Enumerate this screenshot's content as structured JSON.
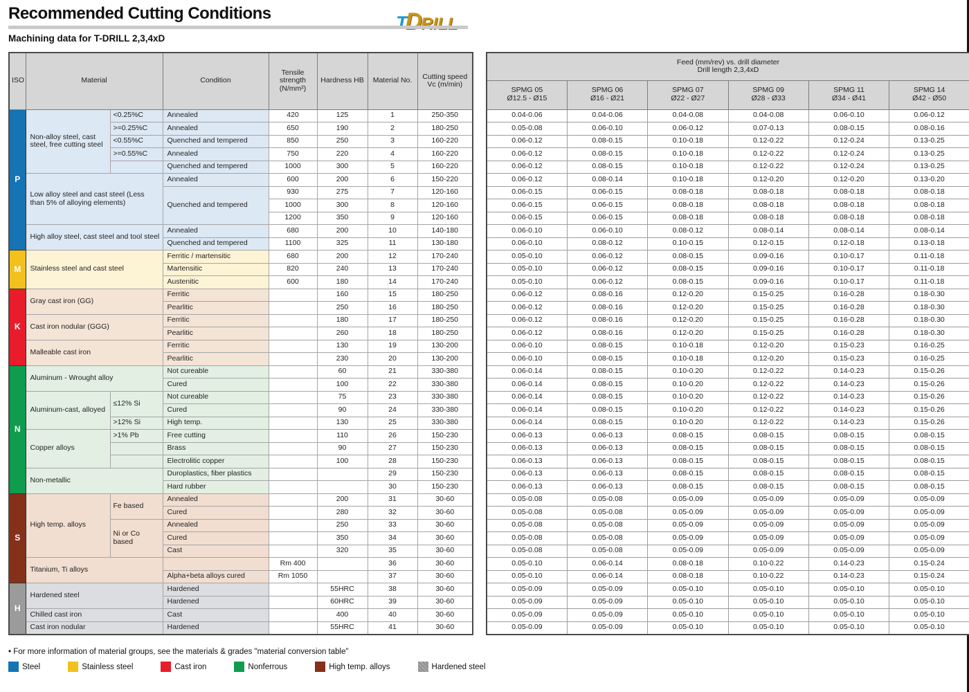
{
  "page": {
    "title": "Recommended Cutting Conditions",
    "subtitle": "Machining data for T-DRILL 2,3,4xD",
    "logo": {
      "t": "T",
      "d": "D",
      "rill": "RILL"
    },
    "footnote": "• For more information of material groups, see the materials & grades \"material conversion table\"",
    "legend": [
      {
        "label": "Steel",
        "color": "#1673b4",
        "hatch": false
      },
      {
        "label": "Stainless steel",
        "color": "#f2c11e",
        "hatch": false
      },
      {
        "label": "Cast iron",
        "color": "#e81c2b",
        "hatch": false
      },
      {
        "label": "Nonferrous",
        "color": "#0f9c4e",
        "hatch": false
      },
      {
        "label": "High temp. alloys",
        "color": "#84301b",
        "hatch": false
      },
      {
        "label": "Hardened steel",
        "color": "#9b9b9b",
        "hatch": true
      }
    ]
  },
  "left_table": {
    "headers": {
      "iso": "ISO",
      "material": "Material",
      "condition": "Condition",
      "tensile": "Tensile strength (N/mm²)",
      "hardness": "Hardness HB",
      "material_no": "Material No.",
      "cutting_speed": "Cutting speed Vc (m/min)"
    },
    "iso_groups": [
      {
        "letter": "P",
        "span": 11,
        "color": "#1673b4",
        "bg": "#dce8f4",
        "fg": "#ffffff",
        "hatch": false
      },
      {
        "letter": "M",
        "span": 3,
        "color": "#f2c11e",
        "bg": "#fdf3d5",
        "fg": "#ffffff",
        "hatch": false
      },
      {
        "letter": "K",
        "span": 6,
        "color": "#e81c2b",
        "bg": "#f4e4d6",
        "fg": "#ffffff",
        "hatch": false
      },
      {
        "letter": "N",
        "span": 10,
        "color": "#0f9c4e",
        "bg": "#e2efe2",
        "fg": "#ffffff",
        "hatch": false
      },
      {
        "letter": "S",
        "span": 7,
        "color": "#84301b",
        "bg": "#f1ded0",
        "fg": "#ffffff",
        "hatch": false
      },
      {
        "letter": "H",
        "span": 4,
        "color": "#9b9b9b",
        "bg": "#dcdde0",
        "fg": "#ffffff",
        "hatch": true
      }
    ],
    "material_groups": [
      {
        "row": 0,
        "span": 5,
        "label": "Non-alloy steel, cast steel, free cutting steel",
        "split": true
      },
      {
        "row": 5,
        "span": 4,
        "label": "Low alloy steel and cast steel (Less than 5% of alloying elements)",
        "split": false
      },
      {
        "row": 9,
        "span": 2,
        "label": "High alloy steel, cast steel and tool steel",
        "split": false
      },
      {
        "row": 11,
        "span": 3,
        "label": "Stainless steel and cast steel",
        "split": false
      },
      {
        "row": 14,
        "span": 2,
        "label": "Gray cast iron (GG)",
        "split": false
      },
      {
        "row": 16,
        "span": 2,
        "label": "Cast iron nodular (GGG)",
        "split": false
      },
      {
        "row": 18,
        "span": 2,
        "label": "Malleable cast iron",
        "split": false
      },
      {
        "row": 20,
        "span": 2,
        "label": "Aluminum - Wrought alloy",
        "split": false
      },
      {
        "row": 22,
        "span": 3,
        "label": "Aluminum-cast, alloyed",
        "split": true
      },
      {
        "row": 25,
        "span": 3,
        "label": "Copper alloys",
        "split": true
      },
      {
        "row": 28,
        "span": 2,
        "label": "Non-metallic",
        "split": false
      },
      {
        "row": 30,
        "span": 5,
        "label": "High temp. alloys",
        "split": true
      },
      {
        "row": 35,
        "span": 2,
        "label": "Titanium, Ti alloys",
        "split": false
      },
      {
        "row": 37,
        "span": 2,
        "label": "Hardened steel",
        "split": false
      },
      {
        "row": 39,
        "span": 1,
        "label": "Chilled cast iron",
        "split": false
      },
      {
        "row": 40,
        "span": 1,
        "label": "Cast iron nodular",
        "split": false
      }
    ],
    "specs": [
      {
        "row": 0,
        "span": 1,
        "label": "<0.25%C"
      },
      {
        "row": 1,
        "span": 1,
        "label": ">=0.25%C"
      },
      {
        "row": 2,
        "span": 1,
        "label": "<0.55%C"
      },
      {
        "row": 3,
        "span": 1,
        "label": ">=0.55%C"
      },
      {
        "row": 4,
        "span": 1,
        "label": ""
      },
      {
        "row": 22,
        "span": 2,
        "label": "≤12% Si"
      },
      {
        "row": 24,
        "span": 1,
        "label": ">12% Si"
      },
      {
        "row": 25,
        "span": 1,
        "label": ">1% Pb"
      },
      {
        "row": 26,
        "span": 1,
        "label": ""
      },
      {
        "row": 27,
        "span": 1,
        "label": ""
      },
      {
        "row": 30,
        "span": 2,
        "label": "Fe based"
      },
      {
        "row": 32,
        "span": 3,
        "label": "Ni or Co based"
      }
    ],
    "conditions": [
      {
        "label": "Annealed",
        "span": 1
      },
      {
        "label": "Annealed",
        "span": 1
      },
      {
        "label": "Quenched and tempered",
        "span": 1
      },
      {
        "label": "Annealed",
        "span": 1
      },
      {
        "label": "Quenched and tempered",
        "span": 1
      },
      {
        "label": "Annealed",
        "span": 1
      },
      {
        "label": "Quenched and tempered",
        "span": 3
      },
      {
        "label": "Annealed",
        "span": 1
      },
      {
        "label": "Quenched and tempered",
        "span": 1
      },
      {
        "label": "Ferritic / martensitic",
        "span": 1
      },
      {
        "label": "Martensitic",
        "span": 1
      },
      {
        "label": "Austenitic",
        "span": 1
      },
      {
        "label": "Ferritic",
        "span": 1
      },
      {
        "label": "Pearlitic",
        "span": 1
      },
      {
        "label": "Ferritic",
        "span": 1
      },
      {
        "label": "Pearlitic",
        "span": 1
      },
      {
        "label": "Ferritic",
        "span": 1
      },
      {
        "label": "Pearlitic",
        "span": 1
      },
      {
        "label": "Not cureable",
        "span": 1
      },
      {
        "label": "Cured",
        "span": 1
      },
      {
        "label": "Not cureable",
        "span": 1
      },
      {
        "label": "Cured",
        "span": 1
      },
      {
        "label": "High temp.",
        "span": 1
      },
      {
        "label": "Free cutting",
        "span": 1
      },
      {
        "label": "Brass",
        "span": 1
      },
      {
        "label": "Electrolitic copper",
        "span": 1
      },
      {
        "label": "Duroplastics, fiber plastics",
        "span": 1
      },
      {
        "label": "Hard rubber",
        "span": 1
      },
      {
        "label": "Annealed",
        "span": 1
      },
      {
        "label": "Cured",
        "span": 1
      },
      {
        "label": "Annealed",
        "span": 1
      },
      {
        "label": "Cured",
        "span": 1
      },
      {
        "label": "Cast",
        "span": 1
      },
      {
        "label": "",
        "span": 1
      },
      {
        "label": "Alpha+beta alloys cured",
        "span": 1
      },
      {
        "label": "Hardened",
        "span": 1
      },
      {
        "label": "Hardened",
        "span": 1
      },
      {
        "label": "Cast",
        "span": 1
      },
      {
        "label": "Hardened",
        "span": 1
      }
    ],
    "tensile": [
      "420",
      "650",
      "850",
      "750",
      "1000",
      "600",
      "930",
      "1000",
      "1200",
      "680",
      "1100",
      "680",
      "820",
      "600",
      "",
      "",
      "",
      "",
      "",
      "",
      "",
      "",
      "",
      "",
      "",
      "",
      "",
      "",
      "",
      "",
      "",
      "",
      "",
      "",
      "",
      "Rm 400",
      "Rm 1050",
      "",
      "",
      "",
      ""
    ],
    "hardness": [
      "125",
      "190",
      "250",
      "220",
      "300",
      "200",
      "275",
      "300",
      "350",
      "200",
      "325",
      "200",
      "240",
      "180",
      "160",
      "250",
      "180",
      "260",
      "130",
      "230",
      "60",
      "100",
      "75",
      "90",
      "130",
      "110",
      "90",
      "100",
      "",
      "",
      "200",
      "280",
      "250",
      "350",
      "320",
      "",
      "",
      "55HRC",
      "60HRC",
      "400",
      "55HRC"
    ],
    "material_no": [
      "1",
      "2",
      "3",
      "4",
      "5",
      "6",
      "7",
      "8",
      "9",
      "10",
      "11",
      "12",
      "13",
      "14",
      "15",
      "16",
      "17",
      "18",
      "19",
      "20",
      "21",
      "22",
      "23",
      "24",
      "25",
      "26",
      "27",
      "28",
      "29",
      "30",
      "31",
      "32",
      "33",
      "34",
      "35",
      "36",
      "37",
      "38",
      "39",
      "40",
      "41"
    ],
    "vc": [
      "250-350",
      "180-250",
      "160-220",
      "160-220",
      "160-220",
      "150-220",
      "120-160",
      "120-160",
      "120-160",
      "140-180",
      "130-180",
      "170-240",
      "170-240",
      "170-240",
      "180-250",
      "180-250",
      "180-250",
      "180-250",
      "130-200",
      "130-200",
      "330-380",
      "330-380",
      "330-380",
      "330-380",
      "330-380",
      "150-230",
      "150-230",
      "150-230",
      "150-230",
      "150-230",
      "30-60",
      "30-60",
      "30-60",
      "30-60",
      "30-60",
      "30-60",
      "30-60",
      "30-60",
      "30-60",
      "30-60",
      "30-60"
    ]
  },
  "right_table": {
    "title_line1": "Feed (mm/rev) vs. drill diameter",
    "title_line2": "Drill length 2,3,4xD",
    "columns": [
      {
        "name": "SPMG 05",
        "range": "Ø12.5 - Ø15"
      },
      {
        "name": "SPMG 06",
        "range": "Ø16 - Ø21"
      },
      {
        "name": "SPMG 07",
        "range": "Ø22 - Ø27"
      },
      {
        "name": "SPMG 09",
        "range": "Ø28 - Ø33"
      },
      {
        "name": "SPMG 11",
        "range": "Ø34 - Ø41"
      },
      {
        "name": "SPMG 14",
        "range": "Ø42 - Ø50"
      }
    ],
    "rows": [
      [
        "0.04-0.06",
        "0.04-0.06",
        "0.04-0.08",
        "0.04-0.08",
        "0.06-0.10",
        "0.06-0.12"
      ],
      [
        "0.05-0.08",
        "0.06-0.10",
        "0.06-0.12",
        "0.07-0.13",
        "0.08-0.15",
        "0.08-0.16"
      ],
      [
        "0.06-0.12",
        "0.08-0.15",
        "0.10-0.18",
        "0.12-0.22",
        "0.12-0.24",
        "0.13-0.25"
      ],
      [
        "0.06-0.12",
        "0.08-0.15",
        "0.10-0.18",
        "0.12-0.22",
        "0.12-0.24",
        "0.13-0.25"
      ],
      [
        "0.06-0.12",
        "0.08-0.15",
        "0.10-0.18",
        "0.12-0.22",
        "0.12-0.24",
        "0.13-0.25"
      ],
      [
        "0.06-0.12",
        "0.08-0.14",
        "0.10-0.18",
        "0.12-0.20",
        "0.12-0.20",
        "0.13-0.20"
      ],
      [
        "0.06-0.15",
        "0.06-0.15",
        "0.08-0.18",
        "0.08-0.18",
        "0.08-0.18",
        "0.08-0.18"
      ],
      [
        "0.06-0.15",
        "0.06-0.15",
        "0.08-0.18",
        "0.08-0.18",
        "0.08-0.18",
        "0.08-0.18"
      ],
      [
        "0.06-0.15",
        "0.06-0.15",
        "0.08-0.18",
        "0.08-0.18",
        "0.08-0.18",
        "0.08-0.18"
      ],
      [
        "0.06-0.10",
        "0.06-0.10",
        "0.08-0.12",
        "0.08-0.14",
        "0.08-0.14",
        "0.08-0.14"
      ],
      [
        "0.06-0.10",
        "0.08-0.12",
        "0.10-0.15",
        "0.12-0.15",
        "0.12-0.18",
        "0.13-0.18"
      ],
      [
        "0.05-0.10",
        "0.06-0.12",
        "0.08-0.15",
        "0.09-0.16",
        "0.10-0.17",
        "0.11-0.18"
      ],
      [
        "0.05-0.10",
        "0.06-0.12",
        "0.08-0.15",
        "0.09-0.16",
        "0.10-0.17",
        "0.11-0.18"
      ],
      [
        "0.05-0.10",
        "0.06-0.12",
        "0.08-0.15",
        "0.09-0.16",
        "0.10-0.17",
        "0.11-0.18"
      ],
      [
        "0.06-0.12",
        "0.08-0.16",
        "0.12-0.20",
        "0.15-0.25",
        "0.16-0.28",
        "0.18-0.30"
      ],
      [
        "0.06-0.12",
        "0.08-0.16",
        "0.12-0.20",
        "0.15-0.25",
        "0.16-0.28",
        "0.18-0.30"
      ],
      [
        "0.06-0.12",
        "0.08-0.16",
        "0.12-0.20",
        "0.15-0.25",
        "0.16-0.28",
        "0.18-0.30"
      ],
      [
        "0.06-0.12",
        "0.08-0.16",
        "0.12-0.20",
        "0.15-0.25",
        "0.16-0.28",
        "0.18-0.30"
      ],
      [
        "0.06-0.10",
        "0.08-0.15",
        "0.10-0.18",
        "0.12-0.20",
        "0.15-0.23",
        "0.16-0.25"
      ],
      [
        "0.06-0.10",
        "0.08-0.15",
        "0.10-0.18",
        "0.12-0.20",
        "0.15-0.23",
        "0.16-0.25"
      ],
      [
        "0.06-0.14",
        "0.08-0.15",
        "0.10-0.20",
        "0.12-0.22",
        "0.14-0.23",
        "0.15-0.26"
      ],
      [
        "0.06-0.14",
        "0.08-0.15",
        "0.10-0.20",
        "0.12-0.22",
        "0.14-0.23",
        "0.15-0.26"
      ],
      [
        "0.06-0.14",
        "0.08-0.15",
        "0.10-0.20",
        "0.12-0.22",
        "0.14-0.23",
        "0.15-0.26"
      ],
      [
        "0.06-0.14",
        "0.08-0.15",
        "0.10-0.20",
        "0.12-0.22",
        "0.14-0.23",
        "0.15-0.26"
      ],
      [
        "0.06-0.14",
        "0.08-0.15",
        "0.10-0.20",
        "0.12-0.22",
        "0.14-0.23",
        "0.15-0.26"
      ],
      [
        "0.06-0.13",
        "0.06-0.13",
        "0.08-0.15",
        "0.08-0.15",
        "0.08-0.15",
        "0.08-0.15"
      ],
      [
        "0.06-0.13",
        "0.06-0.13",
        "0.08-0.15",
        "0.08-0.15",
        "0.08-0.15",
        "0.08-0.15"
      ],
      [
        "0.06-0.13",
        "0.06-0.13",
        "0.08-0.15",
        "0.08-0.15",
        "0.08-0.15",
        "0.08-0.15"
      ],
      [
        "0.06-0.13",
        "0.06-0.13",
        "0.08-0.15",
        "0.08-0.15",
        "0.08-0.15",
        "0.08-0.15"
      ],
      [
        "0.06-0.13",
        "0.06-0.13",
        "0.08-0.15",
        "0.08-0.15",
        "0.08-0.15",
        "0.08-0.15"
      ],
      [
        "0.05-0.08",
        "0.05-0.08",
        "0.05-0.09",
        "0.05-0.09",
        "0.05-0.09",
        "0.05-0.09"
      ],
      [
        "0.05-0.08",
        "0.05-0.08",
        "0.05-0.09",
        "0.05-0.09",
        "0.05-0.09",
        "0.05-0.09"
      ],
      [
        "0.05-0.08",
        "0.05-0.08",
        "0.05-0.09",
        "0.05-0.09",
        "0.05-0.09",
        "0.05-0.09"
      ],
      [
        "0.05-0.08",
        "0.05-0.08",
        "0.05-0.09",
        "0.05-0.09",
        "0.05-0.09",
        "0.05-0.09"
      ],
      [
        "0.05-0.08",
        "0.05-0.08",
        "0.05-0.09",
        "0.05-0.09",
        "0.05-0.09",
        "0.05-0.09"
      ],
      [
        "0.05-0.10",
        "0.06-0.14",
        "0.08-0.18",
        "0.10-0.22",
        "0.14-0.23",
        "0.15-0.24"
      ],
      [
        "0.05-0.10",
        "0.06-0.14",
        "0.08-0.18",
        "0.10-0.22",
        "0.14-0.23",
        "0.15-0.24"
      ],
      [
        "0.05-0.09",
        "0.05-0.09",
        "0.05-0.10",
        "0.05-0.10",
        "0.05-0.10",
        "0.05-0.10"
      ],
      [
        "0.05-0.09",
        "0.05-0.09",
        "0.05-0.10",
        "0.05-0.10",
        "0.05-0.10",
        "0.05-0.10"
      ],
      [
        "0.05-0.09",
        "0.05-0.09",
        "0.05-0.10",
        "0.05-0.10",
        "0.05-0.10",
        "0.05-0.10"
      ],
      [
        "0.05-0.09",
        "0.05-0.09",
        "0.05-0.10",
        "0.05-0.10",
        "0.05-0.10",
        "0.05-0.10"
      ]
    ]
  }
}
